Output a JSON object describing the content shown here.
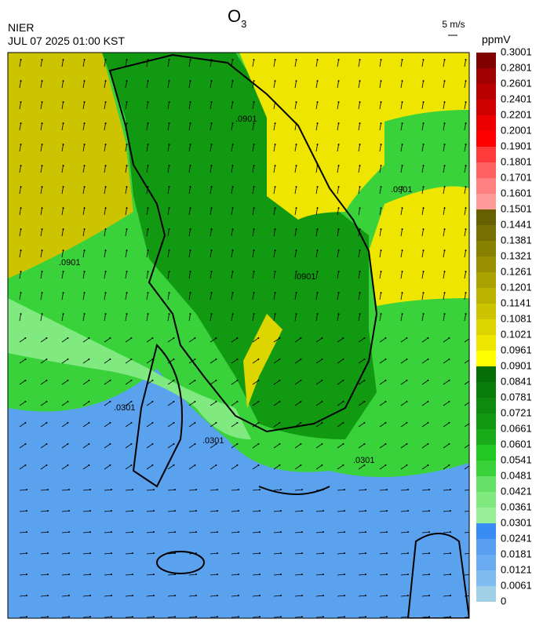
{
  "header": {
    "agency": "NIER",
    "datetime": "JUL 07 2025 01:00 KST",
    "title": {
      "base": "O",
      "subscript": "3"
    }
  },
  "wind_legend": {
    "label": "5 m/s"
  },
  "colorbar": {
    "unit": "ppmV",
    "ticks": [
      0,
      0.0061,
      0.0121,
      0.0181,
      0.0241,
      0.0301,
      0.0361,
      0.0421,
      0.0481,
      0.0541,
      0.0601,
      0.0661,
      0.0721,
      0.0781,
      0.0841,
      0.0901,
      0.0961,
      0.1021,
      0.1081,
      0.1141,
      0.1201,
      0.1261,
      0.1321,
      0.1381,
      0.1441,
      0.1501,
      0.1601,
      0.1701,
      0.1801,
      0.1901,
      0.2001,
      0.2201,
      0.2401,
      0.2601,
      0.2801,
      0.3001
    ],
    "colors": [
      "#9fd0e6",
      "#80bcf0",
      "#6aacf2",
      "#589ff0",
      "#3a8cf5",
      "#99f099",
      "#80ea80",
      "#66e066",
      "#3ad23a",
      "#22c822",
      "#19ab19",
      "#129912",
      "#0e8a0e",
      "#0a7c0a",
      "#066e06",
      "#ffff00",
      "#eee600",
      "#ddd500",
      "#ccc400",
      "#bbb300",
      "#aaa200",
      "#999000",
      "#888000",
      "#776f00",
      "#666000",
      "#ff9a9a",
      "#ff8080",
      "#ff6060",
      "#ff3a3a",
      "#ff0000",
      "#ee0000",
      "#d00000",
      "#b80000",
      "#a00000",
      "#800000"
    ]
  },
  "contour_labels": [
    ".0901",
    ".0901",
    ".0901",
    ".0901",
    ".0301",
    ".0301",
    ".0301"
  ]
}
